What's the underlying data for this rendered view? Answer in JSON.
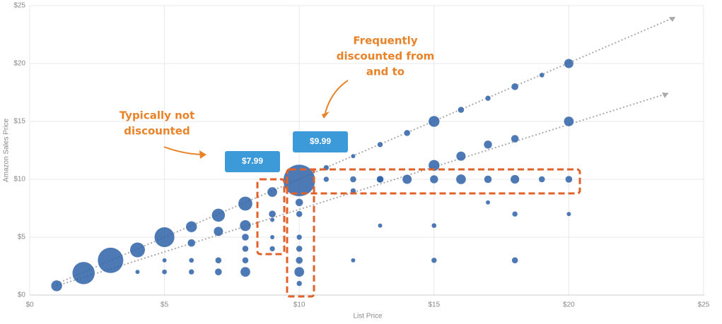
{
  "chart_data": {
    "type": "scatter",
    "xlabel": "List Price",
    "ylabel": "Amazon Sales Price",
    "xlim": [
      0,
      25
    ],
    "ylim": [
      0,
      25
    ],
    "xticks": [
      {
        "value": 0,
        "label": "$0"
      },
      {
        "value": 5,
        "label": "$5"
      },
      {
        "value": 10,
        "label": "$10"
      },
      {
        "value": 15,
        "label": "$15"
      },
      {
        "value": 20,
        "label": "$20"
      },
      {
        "value": 25,
        "label": "$25"
      }
    ],
    "yticks": [
      {
        "value": 0,
        "label": "$0"
      },
      {
        "value": 5,
        "label": "$5"
      },
      {
        "value": 10,
        "label": "$10"
      },
      {
        "value": 15,
        "label": "$15"
      },
      {
        "value": 20,
        "label": "$20"
      },
      {
        "value": 25,
        "label": "$25"
      }
    ],
    "grid": true,
    "color": "#2e62a8",
    "x": [
      1,
      2,
      3,
      4,
      5,
      6,
      7,
      8,
      9,
      10,
      11,
      12,
      13,
      14,
      15,
      16,
      17,
      18,
      19,
      20,
      20,
      15,
      16,
      17,
      18,
      13,
      12,
      8,
      7,
      6,
      9,
      11,
      12,
      13,
      14,
      15,
      16,
      17,
      18,
      19,
      20,
      10,
      10,
      10,
      10,
      10,
      10,
      10,
      9,
      9,
      9,
      4,
      5,
      6,
      7,
      8,
      7,
      8,
      8,
      8,
      5,
      6,
      15,
      18,
      12,
      15,
      18,
      20,
      13,
      17
    ],
    "values": [
      0.8,
      1.9,
      3,
      3.9,
      5,
      5.9,
      6.9,
      7.9,
      8.9,
      9.9,
      11,
      12,
      13,
      14,
      15,
      16,
      17,
      18,
      19,
      20,
      15,
      11.2,
      12,
      13,
      13.5,
      10,
      9,
      6,
      5.5,
      4.5,
      7,
      10,
      10,
      10,
      10,
      10,
      10,
      10,
      10,
      10,
      10,
      8,
      7,
      5,
      4,
      3,
      2,
      1,
      6.5,
      5,
      4,
      2,
      2,
      2,
      2,
      2,
      3,
      3,
      5,
      4,
      3,
      3,
      3,
      3,
      3,
      6,
      7,
      7,
      6,
      8
    ],
    "sizes": [
      25,
      100,
      130,
      45,
      80,
      25,
      35,
      40,
      20,
      200,
      6,
      4,
      6,
      8,
      25,
      8,
      6,
      10,
      5,
      18,
      20,
      25,
      18,
      14,
      12,
      8,
      6,
      25,
      18,
      12,
      10,
      6,
      8,
      10,
      18,
      14,
      20,
      12,
      16,
      8,
      10,
      12,
      8,
      6,
      8,
      10,
      20,
      6,
      4,
      4,
      6,
      4,
      5,
      6,
      10,
      20,
      8,
      8,
      10,
      8,
      4,
      5,
      6,
      8,
      4,
      5,
      6,
      4,
      4,
      4
    ],
    "callouts": [
      "$7.99",
      "$9.99"
    ],
    "annotations": [
      [
        "Frequently",
        "discounted from",
        "and to"
      ],
      [
        "Typically not",
        "discounted"
      ]
    ]
  }
}
